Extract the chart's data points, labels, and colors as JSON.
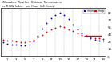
{
  "hours": [
    0,
    1,
    2,
    3,
    4,
    5,
    6,
    7,
    8,
    9,
    10,
    11,
    12,
    13,
    14,
    15,
    16,
    17,
    18,
    19,
    20,
    21,
    22,
    23
  ],
  "temp": [
    30,
    28,
    27,
    26,
    25,
    25,
    26,
    29,
    34,
    40,
    46,
    51,
    54,
    57,
    55,
    51,
    47,
    43,
    40,
    37,
    35,
    33,
    32,
    31
  ],
  "thsw": [
    24,
    21,
    20,
    19,
    18,
    18,
    19,
    26,
    38,
    52,
    64,
    74,
    80,
    85,
    81,
    72,
    61,
    50,
    43,
    38,
    33,
    30,
    28,
    27
  ],
  "temp_color": "#dd0000",
  "thsw_color": "#0000cc",
  "bg_color": "#ffffff",
  "grid_color": "#999999",
  "ylim": [
    -5,
    95
  ],
  "xlim": [
    -0.5,
    23.5
  ],
  "yticks": [
    85,
    70,
    55,
    40,
    25,
    10,
    -5
  ],
  "xticks": [
    1,
    3,
    5,
    7,
    9,
    11,
    13,
    15,
    17,
    19,
    21,
    23
  ],
  "marker_size": 3,
  "dot_size": 1.8,
  "legend_blue_label": "THSW",
  "legend_red_label": "Temp",
  "hline_y": 37,
  "hline_x0": 18.5,
  "hline_x1": 22.5
}
